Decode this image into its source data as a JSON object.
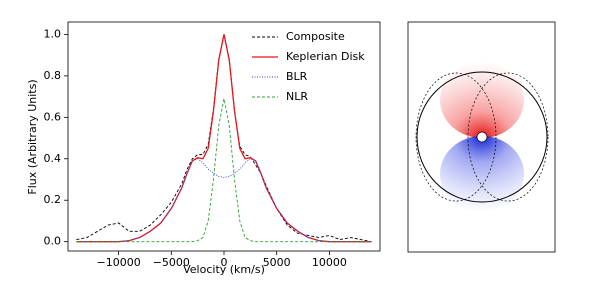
{
  "chart_data": {
    "type": "line",
    "xlabel": "Velocity (km/s)",
    "ylabel": "Flux (Arbitrary Units)",
    "x": [
      -14000,
      -13000,
      -12000,
      -11000,
      -10000,
      -9000,
      -8000,
      -7000,
      -6000,
      -5000,
      -4000,
      -3500,
      -3000,
      -2500,
      -2000,
      -1500,
      -1000,
      -500,
      0,
      500,
      1000,
      1500,
      2000,
      2500,
      3000,
      3500,
      4000,
      5000,
      6000,
      7000,
      8000,
      9000,
      10000,
      11000,
      12000,
      13000,
      14000
    ],
    "series": [
      {
        "name": "Composite",
        "color": "#000000",
        "dash": "dashed",
        "values": [
          0.01,
          0.02,
          0.05,
          0.08,
          0.09,
          0.05,
          0.05,
          0.08,
          0.13,
          0.19,
          0.28,
          0.35,
          0.4,
          0.42,
          0.42,
          0.47,
          0.64,
          0.88,
          1.0,
          0.88,
          0.63,
          0.46,
          0.42,
          0.41,
          0.37,
          0.33,
          0.27,
          0.16,
          0.08,
          0.04,
          0.03,
          0.02,
          0.03,
          0.01,
          0.02,
          0.01,
          0.0
        ]
      },
      {
        "name": "Keplerian Disk",
        "color": "#e8161e",
        "dash": "solid",
        "values": [
          0,
          0,
          0,
          0,
          0,
          0.005,
          0.02,
          0.05,
          0.09,
          0.16,
          0.26,
          0.33,
          0.39,
          0.405,
          0.4,
          0.45,
          0.63,
          0.875,
          1.0,
          0.875,
          0.63,
          0.45,
          0.4,
          0.405,
          0.39,
          0.33,
          0.26,
          0.16,
          0.09,
          0.05,
          0.02,
          0.005,
          0,
          0,
          0,
          0,
          0
        ]
      },
      {
        "name": "BLR",
        "color": "#3a3af0",
        "dash": "dotted",
        "values": [
          0,
          0,
          0,
          0,
          0,
          0.005,
          0.02,
          0.05,
          0.09,
          0.16,
          0.26,
          0.33,
          0.39,
          0.4,
          0.38,
          0.35,
          0.33,
          0.315,
          0.31,
          0.315,
          0.33,
          0.35,
          0.38,
          0.4,
          0.39,
          0.33,
          0.26,
          0.16,
          0.09,
          0.05,
          0.02,
          0.005,
          0,
          0,
          0,
          0,
          0
        ]
      },
      {
        "name": "NLR",
        "color": "#2ca02c",
        "dash": "dashed",
        "values": [
          0,
          0,
          0,
          0,
          0,
          0,
          0,
          0,
          0,
          0,
          0,
          0,
          0,
          0.005,
          0.02,
          0.1,
          0.3,
          0.56,
          0.69,
          0.56,
          0.3,
          0.1,
          0.02,
          0.005,
          0,
          0,
          0,
          0,
          0,
          0,
          0,
          0,
          0,
          0,
          0,
          0,
          0
        ]
      }
    ],
    "xlim": [
      -14800,
      14800
    ],
    "ylim": [
      -0.045,
      1.06
    ],
    "xticks": [
      {
        "value": -10000,
        "label": "−10000"
      },
      {
        "value": -5000,
        "label": "−5000"
      },
      0,
      5000,
      10000
    ],
    "yticks": [
      {
        "value": 0,
        "label": "0.0"
      },
      0.2,
      0.4,
      0.6,
      0.8,
      {
        "value": 1,
        "label": "1.0"
      }
    ],
    "legend": "upper right"
  }
}
